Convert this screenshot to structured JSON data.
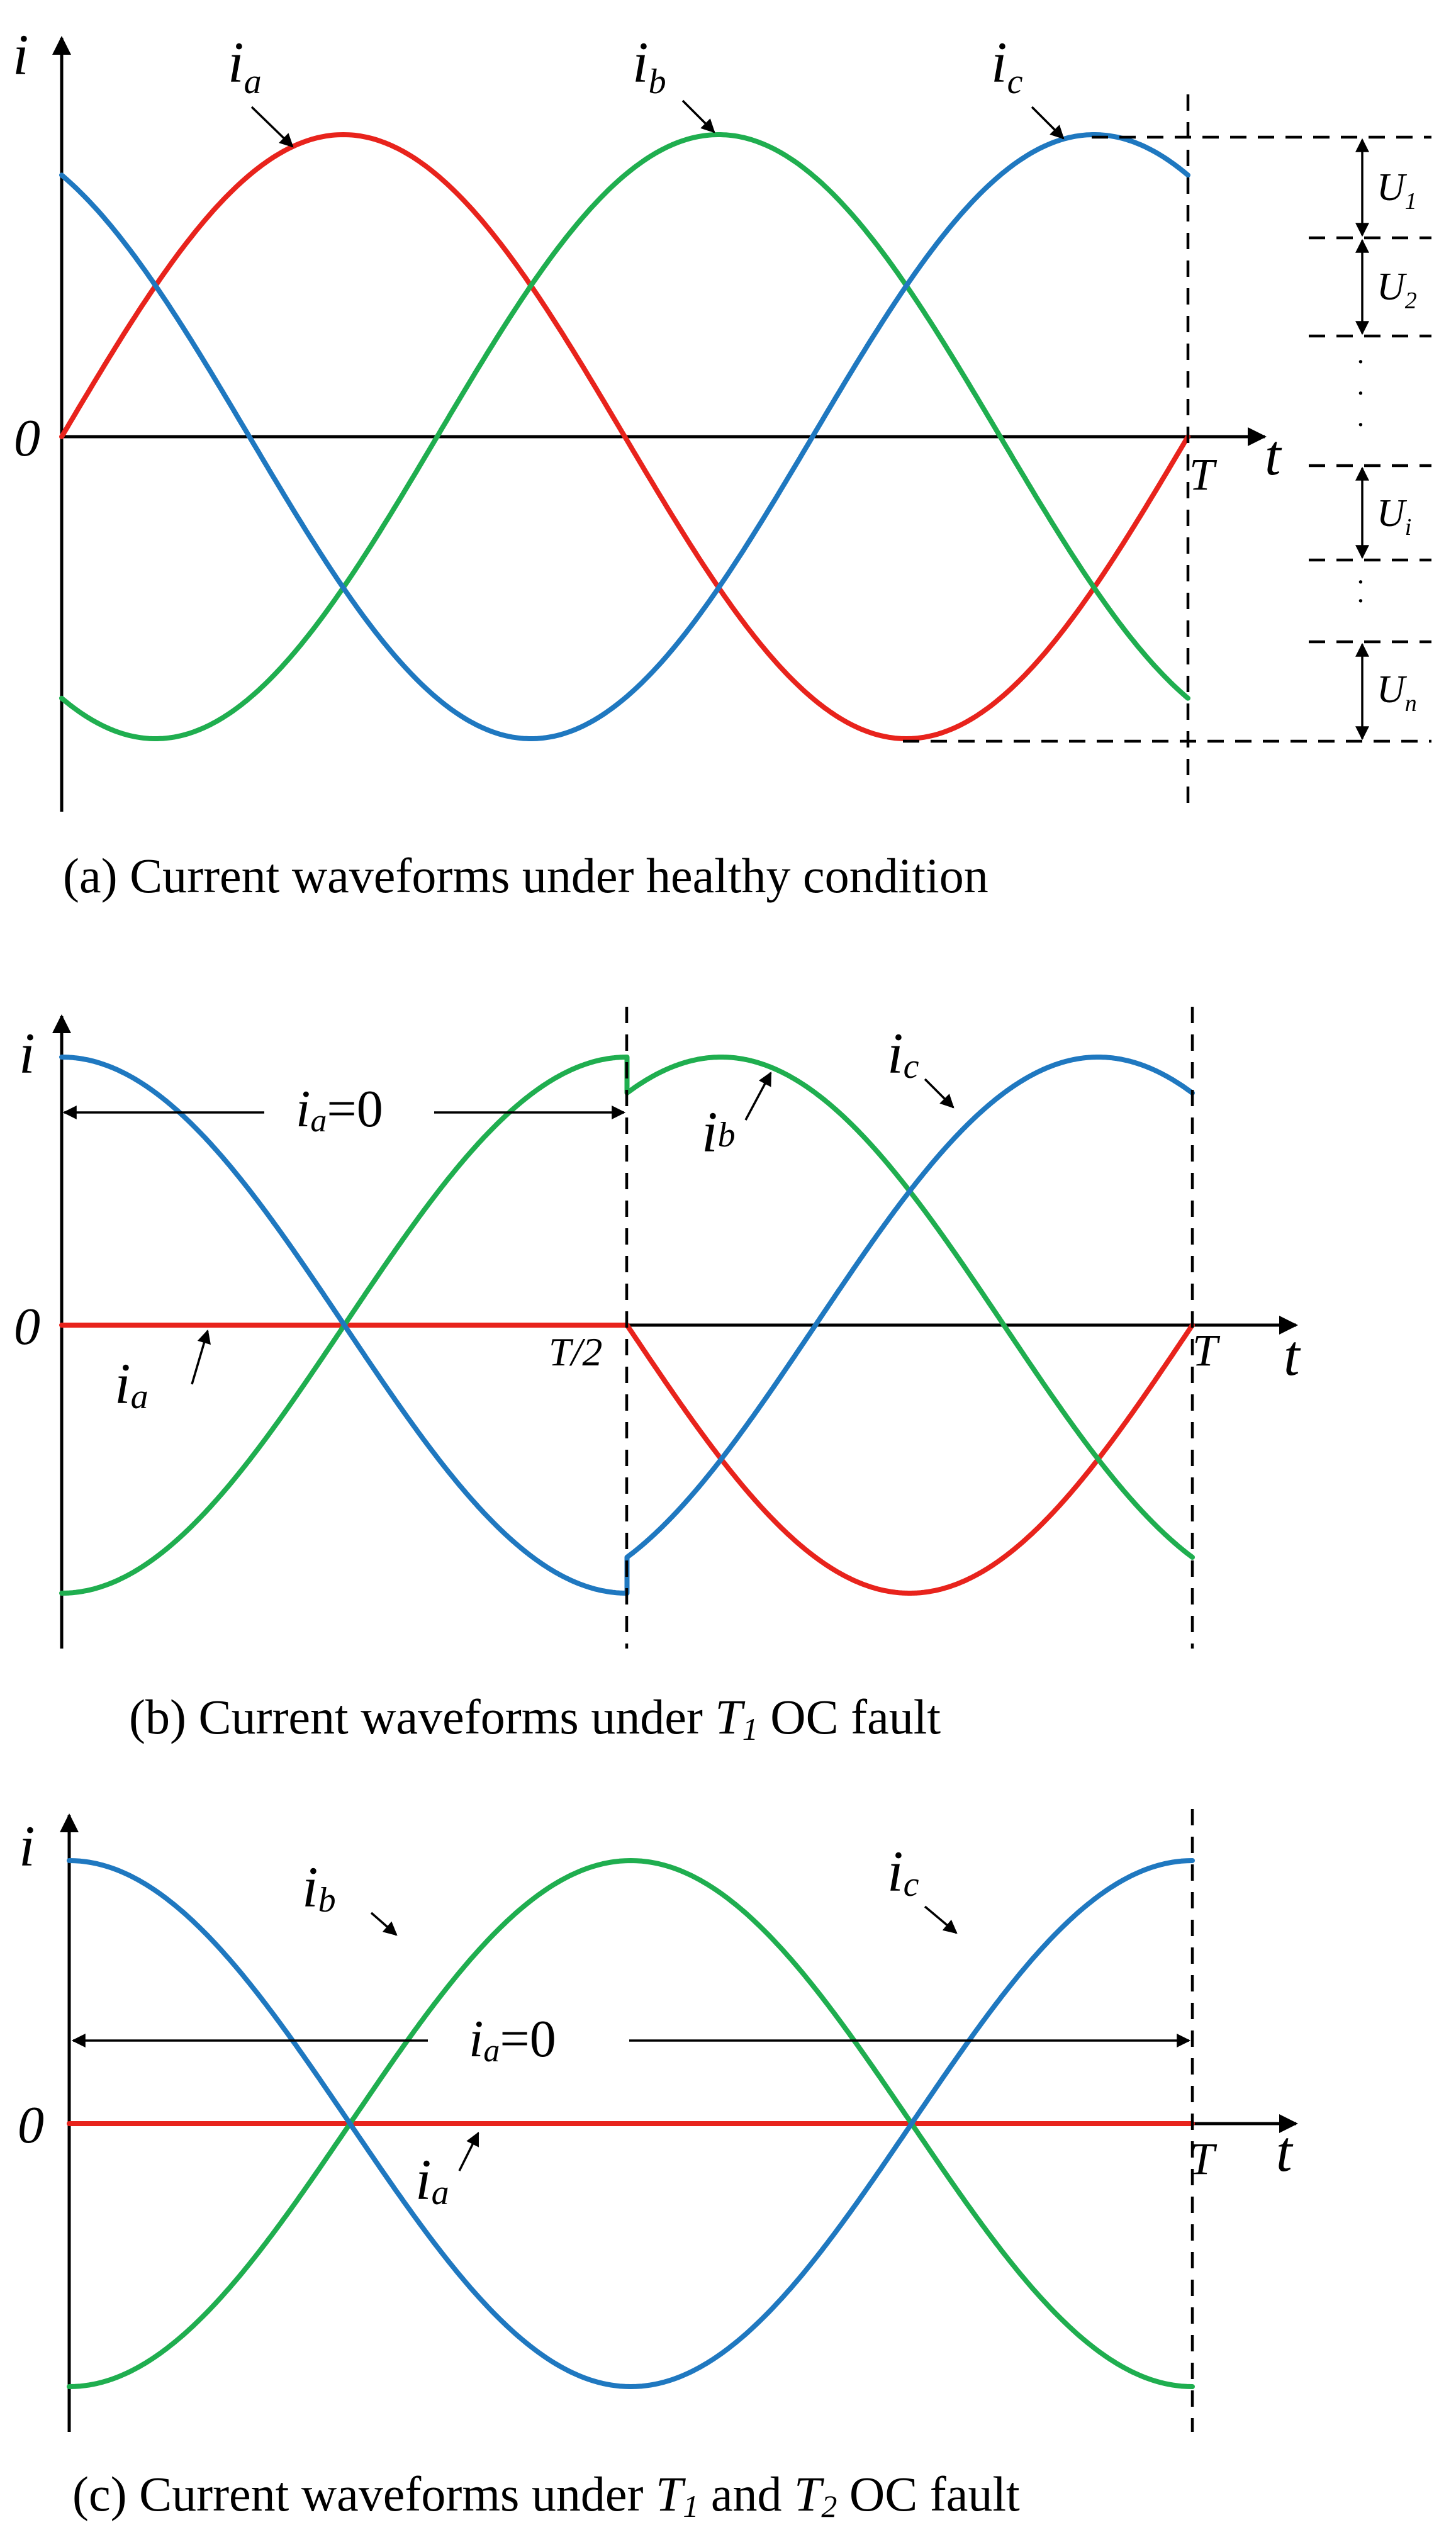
{
  "colors": {
    "ia": "#e8231c",
    "ib": "#1fae4f",
    "ic": "#1f78c0",
    "axis": "#000000"
  },
  "chart_data": [
    {
      "type": "line",
      "caption": "(a) Current waveforms under healthy condition",
      "ylabel": "i",
      "xlabel": "t",
      "origin_label": "0",
      "period_label": "T",
      "x": [
        0,
        0.25,
        0.5,
        0.75,
        1.0
      ],
      "ylim": [
        -1.05,
        1.05
      ],
      "series": [
        {
          "name": "ia",
          "label": "i",
          "sub": "a",
          "phase_deg": 0
        },
        {
          "name": "ib",
          "label": "i",
          "sub": "b",
          "phase_deg": -120
        },
        {
          "name": "ic",
          "label": "i",
          "sub": "c",
          "phase_deg": 120
        }
      ],
      "intervals": [
        {
          "label": "U",
          "sub": "1"
        },
        {
          "label": "U",
          "sub": "2"
        },
        {
          "label": "U",
          "sub": "i"
        },
        {
          "label": "U",
          "sub": "n"
        }
      ]
    },
    {
      "type": "line",
      "caption_parts": [
        "(b) Current waveforms under ",
        "T",
        "1",
        " OC fault"
      ],
      "ylabel": "i",
      "xlabel": "t",
      "origin_label": "0",
      "period_label": "T",
      "half_label": "T/2",
      "fault_interval": "0 ≤ t < T/2",
      "annotation": {
        "label": "i",
        "sub": "a",
        "eq": "=0"
      },
      "series": [
        {
          "name": "ia",
          "label": "i",
          "sub": "a",
          "values_note": "0 for t < T/2, sin(2πt/T) for t ≥ T/2"
        },
        {
          "name": "ib",
          "label": "i",
          "sub": "b"
        },
        {
          "name": "ic",
          "label": "i",
          "sub": "c"
        }
      ]
    },
    {
      "type": "line",
      "caption_parts": [
        "(c) Current waveforms under ",
        "T",
        "1",
        " and ",
        "T",
        "2",
        " OC fault"
      ],
      "ylabel": "i",
      "xlabel": "t",
      "origin_label": "0",
      "period_label": "T",
      "annotation": {
        "label": "i",
        "sub": "a",
        "eq": "=0"
      },
      "series": [
        {
          "name": "ia",
          "label": "i",
          "sub": "a",
          "values_note": "0 for whole period"
        },
        {
          "name": "ib",
          "label": "i",
          "sub": "b"
        },
        {
          "name": "ic",
          "label": "i",
          "sub": "c"
        }
      ]
    }
  ]
}
